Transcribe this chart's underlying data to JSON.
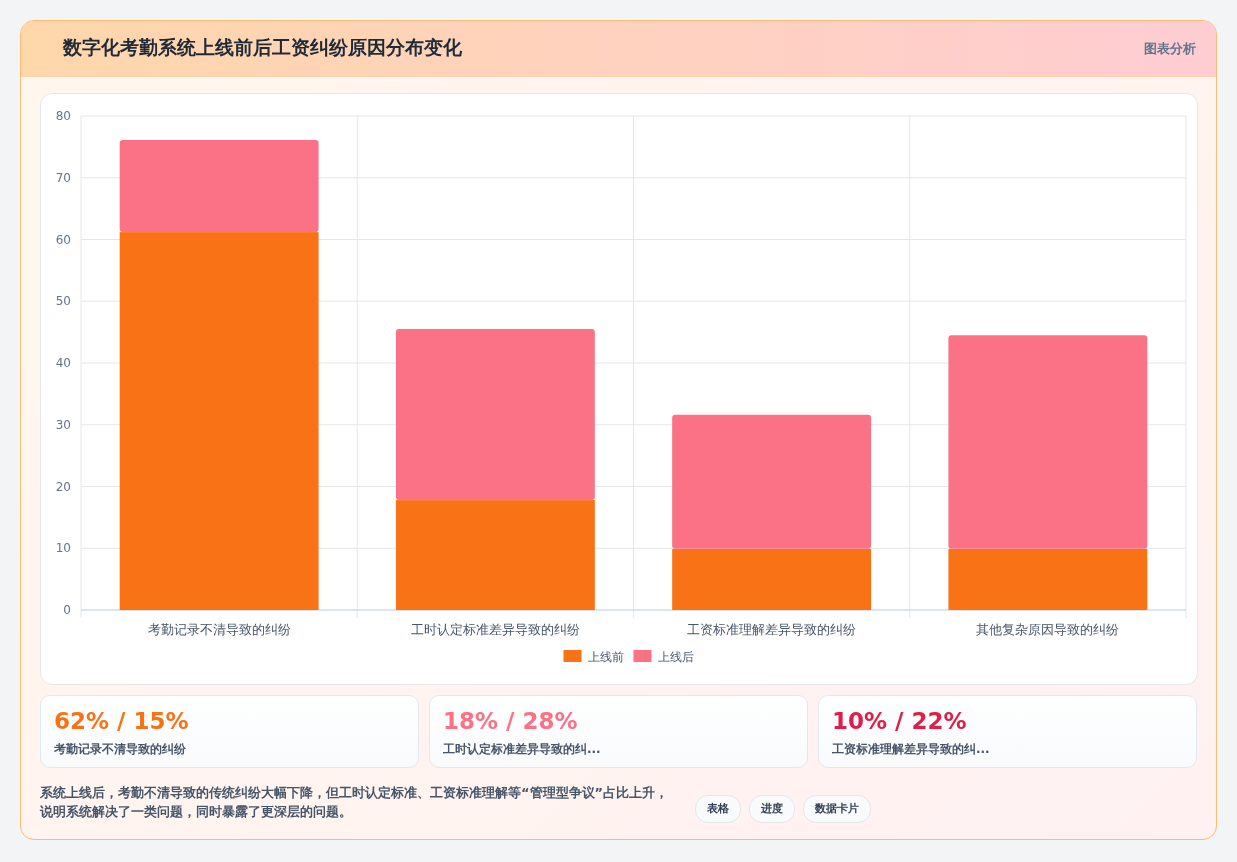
{
  "chart_data": [
    {
      "type": "bar",
      "title": "数字化考勤系统上线前后工资纠纷原因分布变化",
      "subtitle": "图表分析",
      "stacked": true,
      "categories": [
        "考勤记录不清导致的纠纷",
        "工时认定标准差异导致的纠纷",
        "工资标准理解差异导致的纠纷",
        "其他复杂原因导致的纠纷"
      ],
      "series": [
        {
          "name": "上线前",
          "color": "#f97316",
          "values": [
            61.2,
            17.8,
            9.9,
            9.9
          ]
        },
        {
          "name": "上线后",
          "color": "#fb7185",
          "values": [
            14.9,
            27.7,
            21.7,
            34.6
          ]
        }
      ],
      "ylim": [
        0,
        80
      ],
      "yticks": [
        0,
        10,
        20,
        30,
        40,
        50,
        60,
        70,
        80
      ],
      "grid": true,
      "legend": "bottom",
      "annotations": [
        "系统上线后，考勤不清导致的传统纠纷大幅下降，但工时认定标准、工资标准理解等“管理型争议”占比上升，说明系统解决了一类问题，同时暴露了更深层的问题。",
        "表格",
        "进度",
        "数据卡片"
      ]
    },
    {
      "type": "other",
      "title": "62% / 15%",
      "subtitle": "考勤记录不清导致的纠纷",
      "color": "#f97316"
    },
    {
      "type": "other",
      "title": "18% / 28%",
      "subtitle": "工时认定标准差异导致的纠...",
      "color": "#fb7185"
    },
    {
      "type": "other",
      "title": "10% / 22%",
      "subtitle": "工资标准理解差异导致的纠...",
      "color": "#e11d48"
    }
  ]
}
